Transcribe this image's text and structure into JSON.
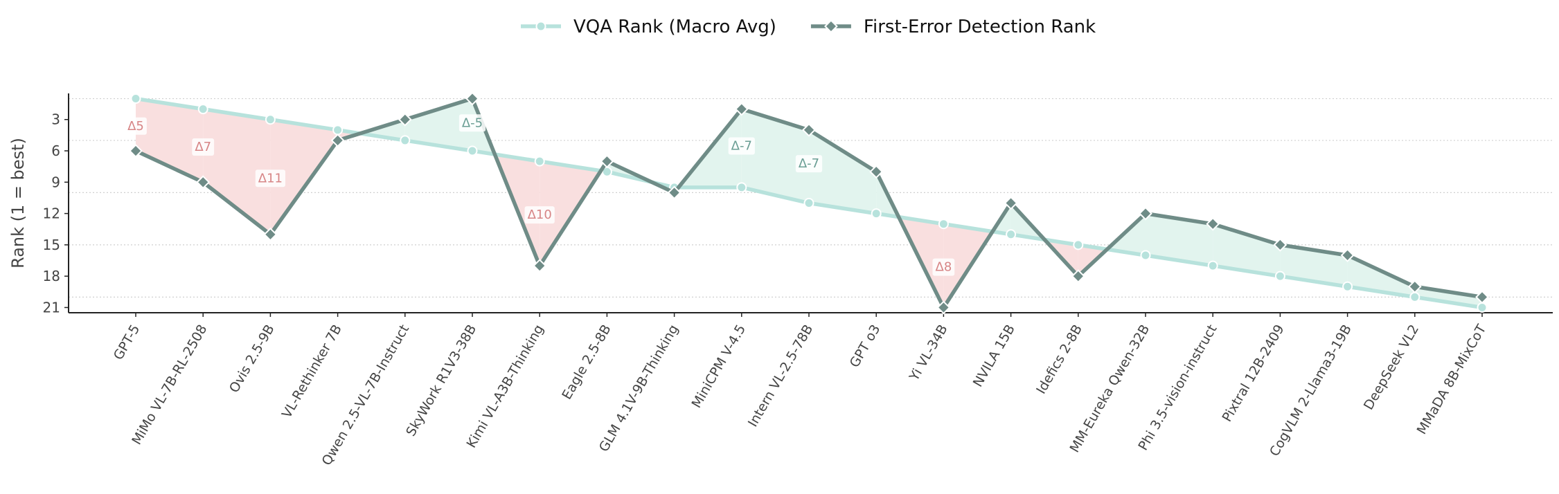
{
  "chart_data": {
    "type": "line",
    "title": "",
    "xlabel": "",
    "ylabel": "Rank (1 = best)",
    "ylim": [
      21.5,
      0.5
    ],
    "y_inverted": true,
    "yticks": [
      3,
      6,
      9,
      12,
      15,
      18,
      21
    ],
    "grid_lines": [
      1,
      5,
      10,
      15,
      20
    ],
    "legend": {
      "placement": "top-center"
    },
    "categories": [
      "GPT-5",
      "MiMo VL-7B-RL-2508",
      "Ovis 2.5-9B",
      "VL-Rethinker 7B",
      "Qwen 2.5-VL-7B-Instruct",
      "SkyWork R1V3-38B",
      "Kimi VL-A3B-Thinking",
      "Eagle 2.5-8B",
      "GLM 4.1V-9B-Thinking",
      "MiniCPM V-4.5",
      "Intern VL-2.5-78B",
      "GPT o3",
      "Yi VL-34B",
      "NVILA 15B",
      "Idefics 2-8B",
      "MM-Eureka Qwen-32B",
      "Phi 3.5-vision-instruct",
      "Pixtral 12B-2409",
      "CogVLM 2-Llama3-19B",
      "DeepSeek VL2",
      "MMaDA 8B-MixCoT"
    ],
    "series": [
      {
        "name": "VQA Rank (Macro Avg)",
        "color": "#b7e2dc",
        "marker": "circle",
        "values": [
          1,
          2,
          3,
          4,
          5,
          6,
          7,
          8,
          9.5,
          9.5,
          11,
          12,
          13,
          14,
          15,
          16,
          17,
          18,
          19,
          20,
          21
        ]
      },
      {
        "name": "First-Error Detection Rank",
        "color": "#6f8c87",
        "marker": "diamond",
        "values": [
          6,
          9,
          14,
          5,
          3,
          1,
          17,
          7,
          10,
          2,
          4,
          8,
          21,
          11,
          18,
          12,
          13,
          15,
          16,
          19,
          20
        ]
      }
    ],
    "annotations": [
      {
        "index": 0,
        "text": "Δ5",
        "y": 3.6,
        "sign": "pos"
      },
      {
        "index": 1,
        "text": "Δ7",
        "y": 5.6,
        "sign": "pos"
      },
      {
        "index": 2,
        "text": "Δ11",
        "y": 8.6,
        "sign": "pos"
      },
      {
        "index": 5,
        "text": "Δ-5",
        "y": 3.3,
        "sign": "neg"
      },
      {
        "index": 6,
        "text": "Δ10",
        "y": 12.1,
        "sign": "pos"
      },
      {
        "index": 9,
        "text": "Δ-7",
        "y": 5.5,
        "sign": "neg"
      },
      {
        "index": 10,
        "text": "Δ-7",
        "y": 7.2,
        "sign": "neg"
      },
      {
        "index": 12,
        "text": "Δ8",
        "y": 17.1,
        "sign": "pos"
      }
    ],
    "fill_colors": {
      "worse": "#f9dfdf",
      "better": "#e2f4ee"
    },
    "delta_colors": {
      "pos": "#d78586",
      "neg": "#6a9e94"
    }
  }
}
